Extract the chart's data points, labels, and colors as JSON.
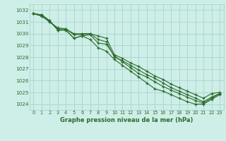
{
  "background_color": "#ceeee8",
  "grid_color": "#aad4cc",
  "line_color": "#2d6a2d",
  "xlabel": "Graphe pression niveau de la mer (hPa)",
  "ylim": [
    1023.5,
    1032.5
  ],
  "xlim": [
    -0.5,
    23.5
  ],
  "yticks": [
    1024,
    1025,
    1026,
    1027,
    1028,
    1029,
    1030,
    1031,
    1032
  ],
  "xticks": [
    0,
    1,
    2,
    3,
    4,
    5,
    6,
    7,
    8,
    9,
    10,
    11,
    12,
    13,
    14,
    15,
    16,
    17,
    18,
    19,
    20,
    21,
    22,
    23
  ],
  "series": [
    [
      1031.7,
      1031.6,
      1031.1,
      1030.3,
      1030.3,
      1029.6,
      1029.8,
      1029.5,
      1028.8,
      1028.5,
      1027.8,
      1027.3,
      1026.8,
      1026.3,
      1025.8,
      1025.3,
      1025.1,
      1024.8,
      1024.5,
      1024.2,
      1024.0,
      1024.0,
      1024.4,
      1024.8
    ],
    [
      1031.7,
      1031.6,
      1031.1,
      1030.3,
      1030.3,
      1029.6,
      1029.8,
      1029.9,
      1029.2,
      1029.1,
      1028.1,
      1027.6,
      1027.1,
      1026.6,
      1026.3,
      1025.9,
      1025.5,
      1025.2,
      1024.9,
      1024.6,
      1024.3,
      1024.1,
      1024.5,
      1024.9
    ],
    [
      1031.7,
      1031.5,
      1031.0,
      1030.4,
      1030.4,
      1029.9,
      1029.9,
      1030.0,
      1029.5,
      1029.3,
      1028.0,
      1027.7,
      1027.3,
      1026.9,
      1026.5,
      1026.2,
      1025.8,
      1025.4,
      1025.1,
      1024.8,
      1024.5,
      1024.2,
      1024.6,
      1024.9
    ],
    [
      1031.7,
      1031.5,
      1031.0,
      1030.5,
      1030.4,
      1030.0,
      1030.0,
      1030.0,
      1029.8,
      1029.6,
      1028.2,
      1027.9,
      1027.5,
      1027.2,
      1026.8,
      1026.4,
      1026.1,
      1025.7,
      1025.4,
      1025.1,
      1024.8,
      1024.5,
      1024.9,
      1025.0
    ]
  ]
}
